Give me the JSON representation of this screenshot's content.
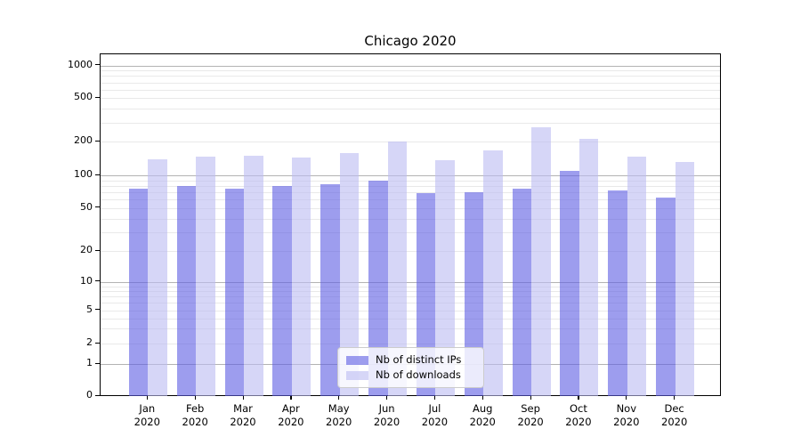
{
  "title": "Chicago 2020",
  "legend": {
    "items": [
      {
        "label": "Nb of distinct IPs",
        "color": "rgba(92,92,226,0.6)"
      },
      {
        "label": "Nb of downloads",
        "color": "rgba(187,187,242,0.6)"
      }
    ]
  },
  "x_axis": {
    "months": [
      "Jan",
      "Feb",
      "Mar",
      "Apr",
      "May",
      "Jun",
      "Jul",
      "Aug",
      "Sep",
      "Oct",
      "Nov",
      "Dec"
    ],
    "year": "2020"
  },
  "y_axis": {
    "tick_labels": [
      "0",
      "1",
      "2",
      "5",
      "10",
      "20",
      "50",
      "100",
      "200",
      "500",
      "1000"
    ],
    "ticks": [
      0,
      1,
      2,
      5,
      10,
      20,
      50,
      100,
      200,
      500,
      1000
    ],
    "minor_gridlines": [
      2,
      3,
      4,
      5,
      6,
      7,
      8,
      9,
      20,
      30,
      40,
      50,
      60,
      70,
      80,
      90,
      200,
      300,
      400,
      500,
      600,
      700,
      800,
      900
    ],
    "major_gridlines": [
      1,
      10,
      100,
      1000
    ],
    "major_grid_color": "#b3b3b3",
    "minor_grid_color": "#e9e9e9"
  },
  "chart_data": {
    "type": "bar",
    "title": "Chicago 2020",
    "categories": [
      "Jan 2020",
      "Feb 2020",
      "Mar 2020",
      "Apr 2020",
      "May 2020",
      "Jun 2020",
      "Jul 2020",
      "Aug 2020",
      "Sep 2020",
      "Oct 2020",
      "Nov 2020",
      "Dec 2020"
    ],
    "series": [
      {
        "name": "Nb of distinct IPs",
        "color": "rgba(92,92,226,0.6)",
        "values": [
          76,
          79,
          76,
          79,
          83,
          90,
          68,
          70,
          76,
          110,
          73,
          62
        ]
      },
      {
        "name": "Nb of downloads",
        "color": "rgba(187,187,242,0.6)",
        "values": [
          139,
          148,
          151,
          145,
          159,
          201,
          137,
          168,
          271,
          213,
          148,
          132
        ]
      }
    ],
    "yscale": "log-like (symlog) with labeled ticks [0,1,2,5,10,20,50,100,200,500,1000]",
    "ylim": [
      0,
      1259
    ],
    "grid": true,
    "legend_position": "lower center"
  }
}
